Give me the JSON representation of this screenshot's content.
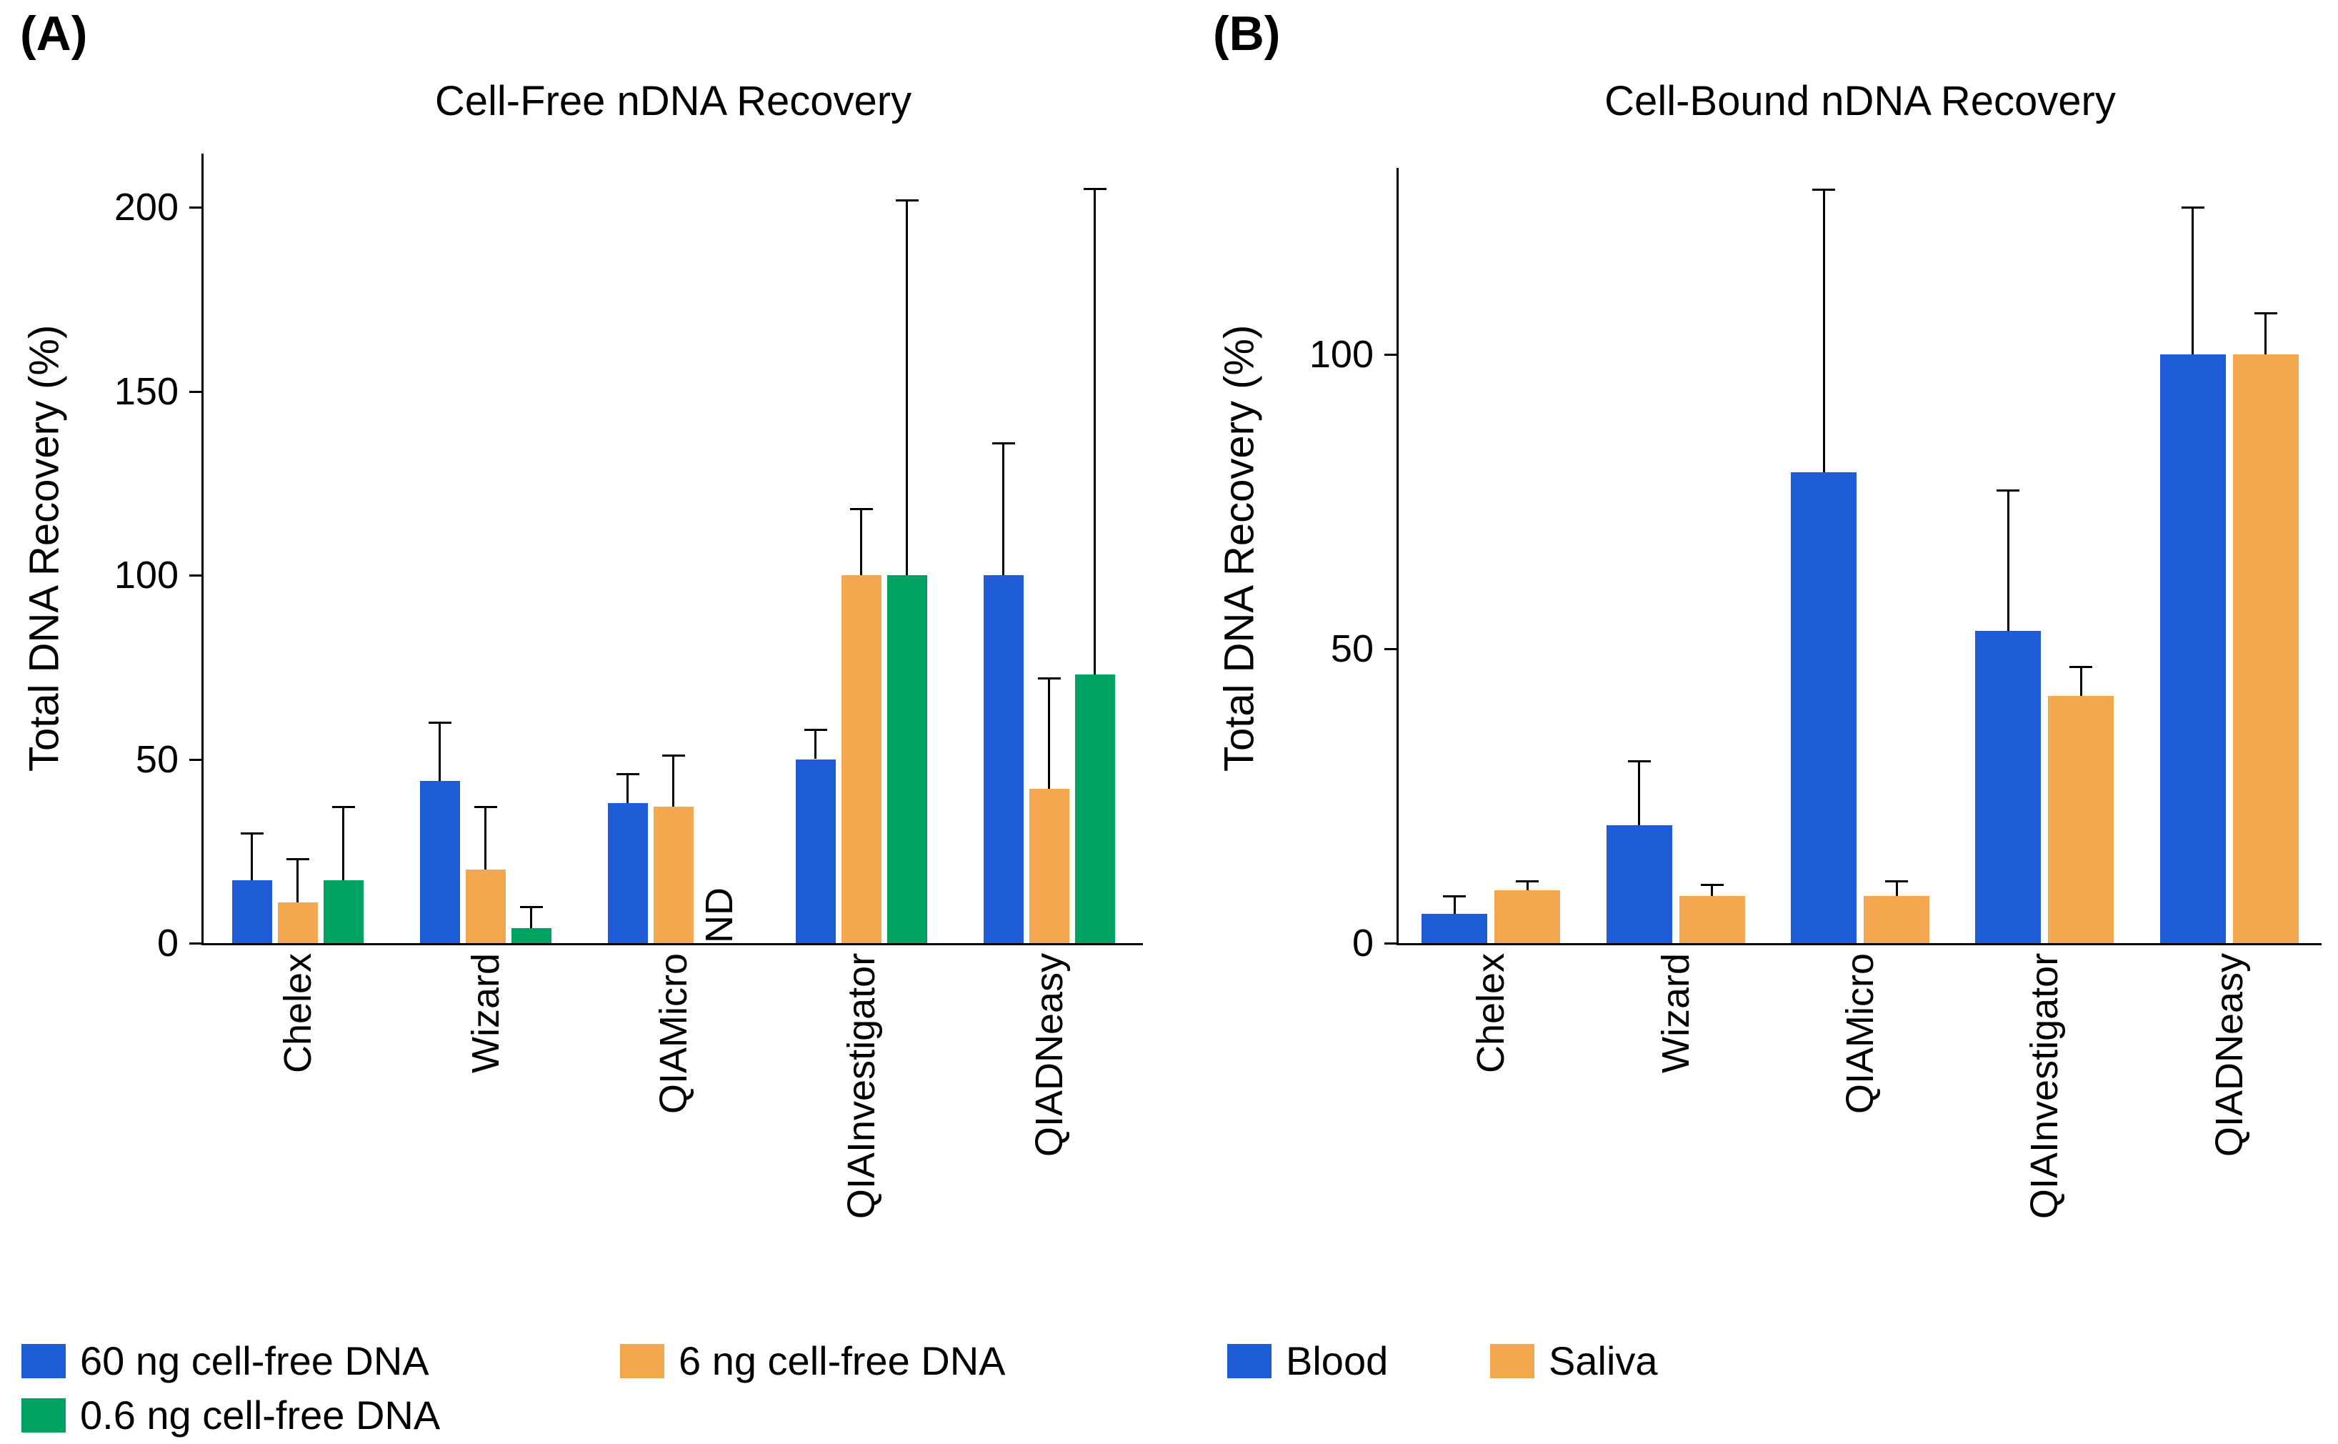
{
  "chart_data": [
    {
      "panel": "A",
      "panel_label": "(A)",
      "type": "bar",
      "title": "Cell-Free nDNA Recovery",
      "ylabel": "Total DNA Recovery (%)",
      "ylim": [
        0,
        215
      ],
      "yticks": [
        0,
        50,
        100,
        150,
        200
      ],
      "grid": false,
      "legend_position": "bottom",
      "nd_label": "ND",
      "categories": [
        "Chelex",
        "Wizard",
        "QIAMicro",
        "QIAInvestigator",
        "QIADNeasy"
      ],
      "series": [
        {
          "name": "60 ng cell-free DNA",
          "color": "#1d5cd6",
          "values": [
            17,
            44,
            38,
            50,
            100
          ],
          "errors_upper": [
            13,
            16,
            8,
            8,
            36
          ]
        },
        {
          "name": "6 ng cell-free DNA",
          "color": "#f3a84f",
          "values": [
            11,
            20,
            37,
            100,
            42
          ],
          "errors_upper": [
            12,
            17,
            14,
            18,
            30
          ]
        },
        {
          "name": "0.6 ng cell-free DNA",
          "color": "#00a262",
          "values": [
            17,
            4,
            "ND",
            100,
            73
          ],
          "errors_upper": [
            20,
            6,
            null,
            102,
            132
          ]
        }
      ]
    },
    {
      "panel": "B",
      "panel_label": "(B)",
      "type": "bar",
      "title": "Cell-Bound nDNA Recovery",
      "ylabel": "Total DNA Recovery (%)",
      "ylim": [
        0,
        132
      ],
      "yticks": [
        0,
        50,
        100
      ],
      "grid": false,
      "legend_position": "bottom",
      "categories": [
        "Chelex",
        "Wizard",
        "QIAMicro",
        "QIAInvestigator",
        "QIADNeasy"
      ],
      "series": [
        {
          "name": "Blood",
          "color": "#1d5cd6",
          "values": [
            5,
            20,
            80,
            53,
            100
          ],
          "errors_upper": [
            3,
            11,
            48,
            24,
            25
          ]
        },
        {
          "name": "Saliva",
          "color": "#f3a84f",
          "values": [
            9,
            8,
            8,
            42,
            100
          ],
          "errors_upper": [
            1.5,
            2,
            2.5,
            5,
            7
          ]
        }
      ]
    }
  ]
}
